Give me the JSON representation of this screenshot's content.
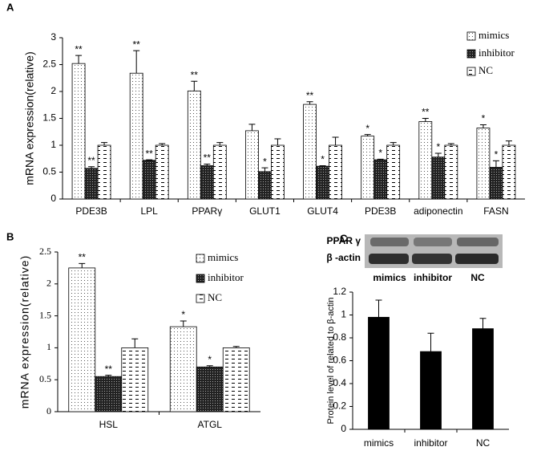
{
  "chart_data": [
    {
      "type": "bar",
      "panel_label": "A",
      "ylabel": "mRNA expression(relative)",
      "categories": [
        "PDE3B",
        "LPL",
        "PPARγ",
        "GLUT1",
        "GLUT4",
        "PDE3B",
        "adiponectin",
        "FASN"
      ],
      "series": [
        {
          "name": "mimics",
          "pattern": "dots",
          "values": [
            2.52,
            2.34,
            2.01,
            1.27,
            1.76,
            1.17,
            1.44,
            1.32
          ],
          "errors": [
            0.15,
            0.42,
            0.18,
            0.12,
            0.05,
            0.03,
            0.06,
            0.06
          ],
          "significance": [
            "**",
            "**",
            "**",
            null,
            "**",
            "*",
            "**",
            "*"
          ]
        },
        {
          "name": "inhibitor",
          "pattern": "checker",
          "values": [
            0.57,
            0.72,
            0.62,
            0.51,
            0.61,
            0.73,
            0.78,
            0.59
          ],
          "errors": [
            0.03,
            0.01,
            0.03,
            0.07,
            0.01,
            0.01,
            0.07,
            0.12
          ],
          "significance": [
            "**",
            "**",
            "**",
            "*",
            "*",
            "*",
            "*",
            "*"
          ]
        },
        {
          "name": "NC",
          "pattern": "dashes",
          "values": [
            1,
            1,
            1,
            1,
            1,
            1,
            1,
            1
          ],
          "errors": [
            0.05,
            0.03,
            0.05,
            0.12,
            0.15,
            0.05,
            0.03,
            0.08
          ]
        }
      ],
      "ylim": [
        0,
        3
      ],
      "yticks": [
        0,
        0.5,
        1,
        1.5,
        2,
        2.5,
        3
      ],
      "legend": "upper right"
    },
    {
      "type": "bar",
      "panel_label": "B",
      "ylabel": "mRNA expression(relative)",
      "categories": [
        "HSL",
        "ATGL"
      ],
      "series": [
        {
          "name": "mimics",
          "pattern": "dots",
          "values": [
            2.25,
            1.33
          ],
          "errors": [
            0.07,
            0.09
          ],
          "significance": [
            "**",
            "*"
          ]
        },
        {
          "name": "inhibitor",
          "pattern": "checker",
          "values": [
            0.55,
            0.7
          ],
          "errors": [
            0.02,
            0.02
          ],
          "significance": [
            "**",
            "*"
          ]
        },
        {
          "name": "NC",
          "pattern": "dashes",
          "values": [
            1,
            1
          ],
          "errors": [
            0.14,
            0.02
          ]
        }
      ],
      "ylim": [
        0,
        2.5
      ],
      "yticks": [
        0,
        0.5,
        1,
        1.5,
        2,
        2.5
      ],
      "legend": "upper right"
    },
    {
      "type": "bar",
      "panel_label": "C",
      "ylabel": "Protein level of related to β-actin",
      "blot_labels": [
        "PPAR γ",
        "β -actin"
      ],
      "categories": [
        "mimics",
        "inhibitor",
        "NC"
      ],
      "values": [
        0.98,
        0.68,
        0.88
      ],
      "errors": [
        0.15,
        0.16,
        0.09
      ],
      "color": "#000000",
      "ylim": [
        0,
        1.2
      ],
      "yticks": [
        0,
        0.2,
        0.4,
        0.6,
        0.8,
        1,
        1.2
      ]
    }
  ]
}
